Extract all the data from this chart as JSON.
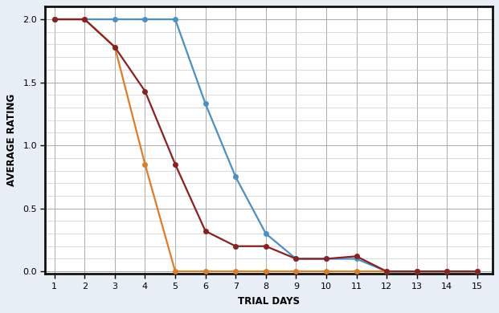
{
  "xlabel": "TRIAL DAYS",
  "ylabel": "AVERAGE RATING",
  "x": [
    1,
    2,
    3,
    4,
    5,
    6,
    7,
    8,
    9,
    10,
    11,
    12,
    13,
    14,
    15
  ],
  "blue_y": [
    2.0,
    2.0,
    2.0,
    2.0,
    2.0,
    1.33,
    0.75,
    0.3,
    0.1,
    0.1,
    0.1,
    0.0,
    0.0,
    0.0,
    0.0
  ],
  "orange_y": [
    2.0,
    2.0,
    1.78,
    0.85,
    0.0,
    0.0,
    0.0,
    0.0,
    0.0,
    0.0,
    0.0,
    0.0,
    0.0,
    0.0,
    0.0
  ],
  "darkred_y": [
    2.0,
    2.0,
    1.78,
    1.43,
    0.85,
    0.32,
    0.2,
    0.2,
    0.1,
    0.1,
    0.12,
    0.0,
    0.0,
    0.0,
    0.0
  ],
  "blue_color": "#4a90c4",
  "orange_color": "#e07b22",
  "darkred_color": "#8b2020",
  "linewidth": 1.6,
  "markersize": 4.0,
  "marker": "o",
  "xlim": [
    0.7,
    15.5
  ],
  "ylim": [
    -0.02,
    2.1
  ],
  "yticks": [
    0.0,
    0.5,
    1.0,
    1.5,
    2.0
  ],
  "xticks": [
    1,
    2,
    3,
    4,
    5,
    6,
    7,
    8,
    9,
    10,
    11,
    12,
    13,
    14,
    15
  ],
  "major_grid_color": "#aaaaaa",
  "minor_grid_color": "#cccccc",
  "bg_color": "#ffffff",
  "outer_bg": "#e8eef5",
  "axis_label_fontsize": 8.5,
  "tick_fontsize": 8
}
